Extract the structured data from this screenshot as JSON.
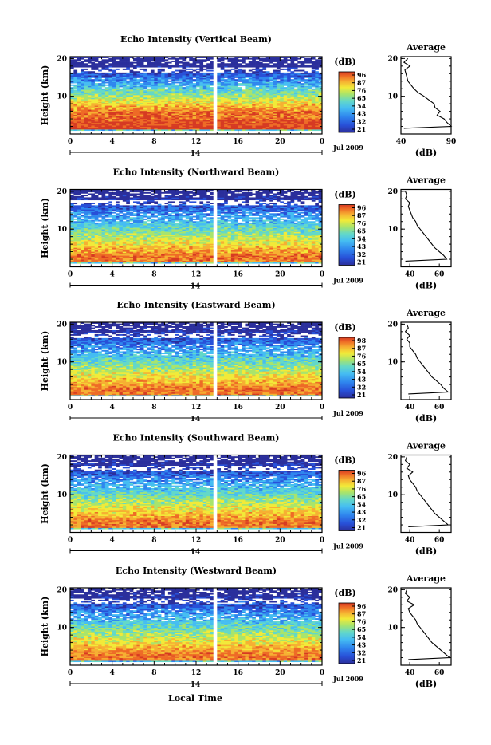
{
  "chart_data": [
    {
      "type": "heatmap",
      "title": "Echo Intensity (Vertical Beam)",
      "ylabel": "Height (km)",
      "y_ticks": [
        "20",
        "10"
      ],
      "x_ticks": [
        "0",
        "4",
        "8",
        "12",
        "16",
        "20",
        "0"
      ],
      "day_marker": "14",
      "date_label": "Jul 2009",
      "colorbar": {
        "unit": "(dB)",
        "ticks": [
          "96",
          "87",
          "76",
          "65",
          "54",
          "43",
          "32",
          "21"
        ]
      },
      "profile": {
        "title": "Average",
        "xlabel": "(dB)",
        "x_ticks": [
          "40",
          "90"
        ],
        "y_ticks": [
          "20",
          "10"
        ],
        "xlim": [
          40,
          90
        ],
        "heights": [
          1.5,
          2,
          3,
          4,
          5,
          6,
          7,
          8,
          9,
          10,
          11,
          12,
          13,
          14,
          15,
          16,
          17,
          18,
          19,
          20
        ],
        "values": [
          43,
          90,
          86,
          83,
          76,
          79,
          74,
          73,
          68,
          63,
          57,
          53,
          50,
          47,
          46,
          45,
          44,
          49,
          43,
          47
        ]
      }
    },
    {
      "type": "heatmap",
      "title": "Echo Intensity (Northward Beam)",
      "ylabel": "Height (km)",
      "y_ticks": [
        "20",
        "10"
      ],
      "x_ticks": [
        "0",
        "4",
        "8",
        "12",
        "16",
        "20",
        "0"
      ],
      "day_marker": "14",
      "date_label": "Jul 2009",
      "colorbar": {
        "unit": "(dB)",
        "ticks": [
          "96",
          "87",
          "76",
          "65",
          "54",
          "43",
          "32",
          "21"
        ]
      },
      "profile": {
        "title": "Average",
        "xlabel": "(dB)",
        "x_ticks": [
          "40",
          "60"
        ],
        "y_ticks": [
          "20",
          "10"
        ],
        "xlim": [
          34,
          68
        ],
        "heights": [
          1.5,
          2,
          3,
          4,
          5,
          6,
          7,
          8,
          9,
          10,
          11,
          12,
          13,
          14,
          15,
          16,
          17,
          18,
          19,
          20
        ],
        "values": [
          37,
          65,
          63,
          60,
          57,
          55,
          53,
          51,
          49,
          47,
          45,
          44,
          42,
          41,
          40,
          39,
          40,
          37,
          38,
          37
        ]
      }
    },
    {
      "type": "heatmap",
      "title": "Echo Intensity (Eastward Beam)",
      "ylabel": "Height (km)",
      "y_ticks": [
        "20",
        "10"
      ],
      "x_ticks": [
        "0",
        "4",
        "8",
        "12",
        "16",
        "20",
        "0"
      ],
      "day_marker": "14",
      "date_label": "Jul 2009",
      "colorbar": {
        "unit": "(dB)",
        "ticks": [
          "98",
          "87",
          "76",
          "65",
          "54",
          "43",
          "32",
          "21"
        ]
      },
      "profile": {
        "title": "Average",
        "xlabel": "(dB)",
        "x_ticks": [
          "40",
          "60"
        ],
        "y_ticks": [
          "20",
          "10"
        ],
        "xlim": [
          34,
          68
        ],
        "heights": [
          1.5,
          2,
          3,
          4,
          5,
          6,
          7,
          8,
          9,
          10,
          11,
          12,
          13,
          14,
          15,
          16,
          17,
          18,
          19,
          20
        ],
        "values": [
          39,
          66,
          63,
          61,
          58,
          55,
          53,
          51,
          49,
          47,
          45,
          44,
          42,
          40,
          40,
          38,
          40,
          37,
          39,
          38
        ]
      }
    },
    {
      "type": "heatmap",
      "title": "Echo Intensity (Southward Beam)",
      "ylabel": "Height (km)",
      "y_ticks": [
        "20",
        "10"
      ],
      "x_ticks": [
        "0",
        "4",
        "8",
        "12",
        "16",
        "20",
        "0"
      ],
      "day_marker": "14",
      "date_label": "Jul 2009",
      "colorbar": {
        "unit": "(dB)",
        "ticks": [
          "96",
          "87",
          "76",
          "65",
          "54",
          "43",
          "32",
          "21"
        ]
      },
      "profile": {
        "title": "Average",
        "xlabel": "(dB)",
        "x_ticks": [
          "40",
          "60"
        ],
        "y_ticks": [
          "20",
          "10"
        ],
        "xlim": [
          34,
          68
        ],
        "heights": [
          1.5,
          2,
          3,
          4,
          5,
          6,
          7,
          8,
          9,
          10,
          11,
          12,
          13,
          14,
          15,
          16,
          17,
          18,
          19,
          20
        ],
        "values": [
          39,
          66,
          63,
          60,
          57,
          55,
          53,
          51,
          49,
          47,
          45,
          44,
          42,
          40,
          39,
          42,
          38,
          40,
          37,
          38
        ]
      }
    },
    {
      "type": "heatmap",
      "title": "Echo Intensity (Westward Beam)",
      "ylabel": "Height (km)",
      "xlabel": "Local Time",
      "y_ticks": [
        "20",
        "10"
      ],
      "x_ticks": [
        "0",
        "4",
        "8",
        "12",
        "16",
        "20",
        "0"
      ],
      "day_marker": "14",
      "date_label": "Jul 2009",
      "colorbar": {
        "unit": "(dB)",
        "ticks": [
          "96",
          "87",
          "76",
          "65",
          "54",
          "43",
          "32",
          "21"
        ]
      },
      "profile": {
        "title": "Average",
        "xlabel": "(dB)",
        "x_ticks": [
          "40",
          "60"
        ],
        "y_ticks": [
          "20",
          "10"
        ],
        "xlim": [
          34,
          68
        ],
        "heights": [
          1.5,
          2,
          3,
          4,
          5,
          6,
          7,
          8,
          9,
          10,
          11,
          12,
          13,
          14,
          15,
          16,
          17,
          18,
          19,
          20
        ],
        "values": [
          39,
          67,
          64,
          61,
          58,
          55,
          53,
          51,
          49,
          47,
          45,
          44,
          42,
          40,
          39,
          43,
          38,
          40,
          37,
          38
        ]
      }
    }
  ],
  "colors": {
    "scale": [
      "#2b2f9c",
      "#2850d8",
      "#2f86ee",
      "#45bdf2",
      "#63d8c8",
      "#a8e46c",
      "#f2ea38",
      "#f6b032",
      "#ee6b26",
      "#d63a22"
    ],
    "gap": "#ffffff"
  }
}
